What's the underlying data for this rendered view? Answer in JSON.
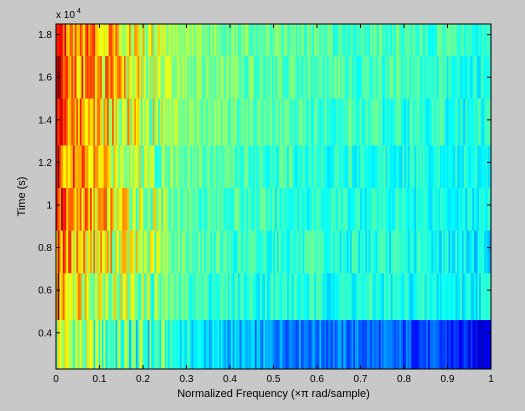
{
  "chart_data": {
    "type": "heatmap",
    "title": "",
    "xlabel": "Normalized Frequency  (×π rad/sample)",
    "ylabel": "Time (s)",
    "y_exponent_label": "x 10",
    "y_exponent_power": "4",
    "xlim": [
      0,
      1
    ],
    "ylim": [
      2300,
      18500
    ],
    "x_ticks": [
      0,
      0.1,
      0.2,
      0.3,
      0.4,
      0.5,
      0.6,
      0.7,
      0.8,
      0.9,
      1
    ],
    "x_tick_labels": [
      "0",
      "0.1",
      "0.2",
      "0.3",
      "0.4",
      "0.5",
      "0.6",
      "0.7",
      "0.8",
      "0.9",
      "1"
    ],
    "y_ticks": [
      4000,
      6000,
      8000,
      10000,
      12000,
      14000,
      16000,
      18000
    ],
    "y_tick_labels": [
      "0.4",
      "0.6",
      "0.8",
      "1",
      "1.2",
      "1.4",
      "1.6",
      "1.8"
    ],
    "colormap": "jet",
    "color_min": 0,
    "color_max": 1,
    "time_rows": [
      {
        "y_start": 2300,
        "y_end": 4600
      },
      {
        "y_start": 4600,
        "y_end": 6800
      },
      {
        "y_start": 6800,
        "y_end": 8800
      },
      {
        "y_start": 8800,
        "y_end": 10800
      },
      {
        "y_start": 10800,
        "y_end": 12800
      },
      {
        "y_start": 12800,
        "y_end": 15000
      },
      {
        "y_start": 15000,
        "y_end": 17000
      },
      {
        "y_start": 17000,
        "y_end": 18500
      }
    ],
    "profile_x": [
      0,
      0.005,
      0.01,
      0.02,
      0.04,
      0.06,
      0.08,
      0.1,
      0.12,
      0.15,
      0.18,
      0.2,
      0.25,
      0.3,
      0.35,
      0.4,
      0.45,
      0.5,
      0.6,
      0.7,
      0.8,
      0.9,
      0.95,
      1
    ],
    "row_profiles": [
      [
        0.55,
        0.6,
        0.58,
        0.56,
        0.54,
        0.52,
        0.5,
        0.48,
        0.46,
        0.45,
        0.44,
        0.43,
        0.42,
        0.38,
        0.34,
        0.31,
        0.29,
        0.27,
        0.25,
        0.23,
        0.21,
        0.18,
        0.12,
        0.12
      ],
      [
        0.72,
        0.88,
        0.72,
        0.68,
        0.66,
        0.64,
        0.62,
        0.6,
        0.58,
        0.56,
        0.54,
        0.52,
        0.48,
        0.45,
        0.43,
        0.42,
        0.41,
        0.41,
        0.4,
        0.4,
        0.39,
        0.38,
        0.38,
        0.38
      ],
      [
        0.74,
        0.9,
        0.76,
        0.72,
        0.7,
        0.68,
        0.66,
        0.64,
        0.62,
        0.6,
        0.57,
        0.55,
        0.5,
        0.47,
        0.45,
        0.43,
        0.42,
        0.42,
        0.41,
        0.4,
        0.4,
        0.38,
        0.36,
        0.36
      ],
      [
        0.76,
        0.92,
        0.82,
        0.76,
        0.73,
        0.71,
        0.7,
        0.68,
        0.66,
        0.62,
        0.58,
        0.55,
        0.5,
        0.47,
        0.45,
        0.44,
        0.43,
        0.42,
        0.41,
        0.41,
        0.4,
        0.4,
        0.38,
        0.38
      ],
      [
        0.78,
        0.9,
        0.8,
        0.75,
        0.72,
        0.7,
        0.68,
        0.66,
        0.63,
        0.6,
        0.57,
        0.55,
        0.51,
        0.48,
        0.46,
        0.45,
        0.44,
        0.43,
        0.42,
        0.41,
        0.41,
        0.4,
        0.39,
        0.39
      ],
      [
        0.8,
        0.93,
        0.84,
        0.78,
        0.75,
        0.72,
        0.7,
        0.68,
        0.65,
        0.62,
        0.6,
        0.58,
        0.54,
        0.5,
        0.48,
        0.47,
        0.46,
        0.45,
        0.44,
        0.43,
        0.42,
        0.41,
        0.4,
        0.4
      ],
      [
        0.82,
        0.93,
        0.86,
        0.8,
        0.77,
        0.74,
        0.72,
        0.7,
        0.67,
        0.64,
        0.61,
        0.58,
        0.54,
        0.51,
        0.49,
        0.48,
        0.47,
        0.46,
        0.45,
        0.44,
        0.43,
        0.42,
        0.4,
        0.4
      ],
      [
        0.84,
        0.92,
        0.86,
        0.82,
        0.79,
        0.77,
        0.75,
        0.72,
        0.69,
        0.66,
        0.63,
        0.6,
        0.55,
        0.52,
        0.5,
        0.49,
        0.48,
        0.47,
        0.46,
        0.45,
        0.44,
        0.43,
        0.42,
        0.42
      ]
    ]
  }
}
